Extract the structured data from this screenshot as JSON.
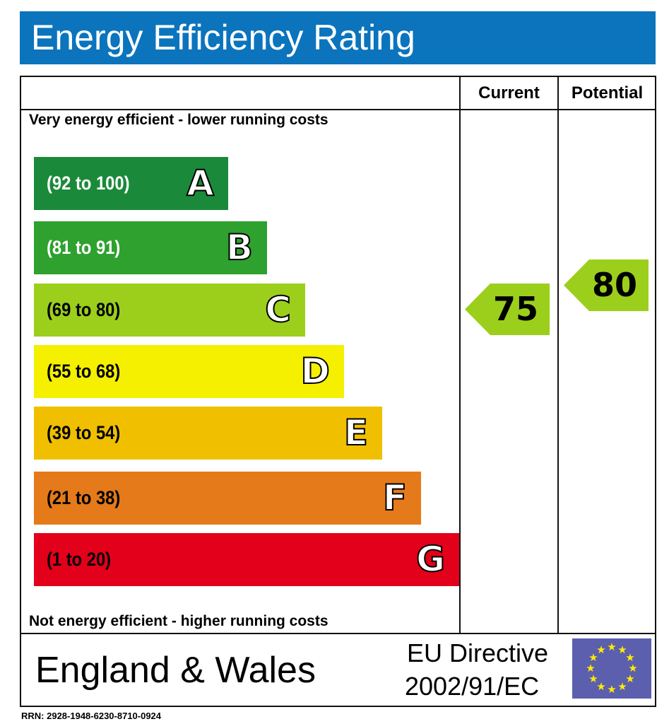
{
  "chart_data": {
    "type": "table",
    "title": "Energy Efficiency Rating",
    "columns": [
      "Current",
      "Potential"
    ],
    "top_note": "Very energy efficient - lower running costs",
    "bottom_note": "Not energy efficient - higher running costs",
    "bands": [
      {
        "letter": "A",
        "range": "(92 to 100)",
        "color": "#1a8a3a",
        "text": "#fff"
      },
      {
        "letter": "B",
        "range": "(81 to 91)",
        "color": "#2ea12e",
        "text": "#fff"
      },
      {
        "letter": "C",
        "range": "(69 to 80)",
        "color": "#9ccf1c",
        "text": "#000"
      },
      {
        "letter": "D",
        "range": "(55 to 68)",
        "color": "#f5f000",
        "text": "#000"
      },
      {
        "letter": "E",
        "range": "(39 to 54)",
        "color": "#f0c000",
        "text": "#000"
      },
      {
        "letter": "F",
        "range": "(21 to 38)",
        "color": "#e57a1a",
        "text": "#000"
      },
      {
        "letter": "G",
        "range": "(1 to 20)",
        "color": "#e2001a",
        "text": "#000"
      }
    ],
    "current": {
      "value": "75",
      "band": "C",
      "color": "#9ccf1c"
    },
    "potential": {
      "value": "80",
      "band": "C",
      "color": "#9ccf1c"
    }
  },
  "footer": {
    "region": "England & Wales",
    "directive_line1": "EU Directive",
    "directive_line2": "2002/91/EC",
    "rrn": "RRN: 2928-1948-6230-8710-0924"
  }
}
